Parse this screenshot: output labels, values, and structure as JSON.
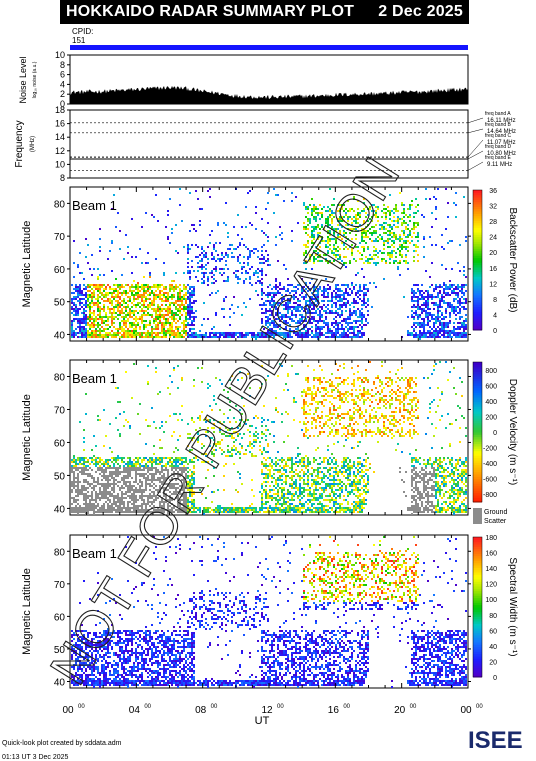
{
  "header": {
    "title": "HOKKAIDO RADAR SUMMARY PLOT",
    "date": "2 Dec 2025"
  },
  "cpid": {
    "label": "CPID:",
    "value": "151"
  },
  "panels": {
    "noise": {
      "ylabel": "Noise Level",
      "ylabel_sub": "log₁₀ noise (a.u.)",
      "ticks": [
        "0",
        "2",
        "4",
        "6",
        "8",
        "10"
      ]
    },
    "freq": {
      "ylabel": "Frequency",
      "ylabel_unit": "(MHz)",
      "ticks": [
        "8",
        "10",
        "12",
        "14",
        "16",
        "18"
      ],
      "bands": [
        {
          "name": "freq band A",
          "value": "16.11 MHz"
        },
        {
          "name": "freq band B",
          "value": "14.64 MHz"
        },
        {
          "name": "freq band C",
          "value": "11.07 MHz"
        },
        {
          "name": "freq band D",
          "value": "10.80 MHz"
        },
        {
          "name": "freq band E",
          "value": "9.11 MHz"
        }
      ]
    },
    "power": {
      "beam": "Beam  1",
      "ylabel": "Magnetic Latitude",
      "cbar_label": "Backscatter Power (dB)",
      "cbar_ticks": [
        "0",
        "4",
        "8",
        "12",
        "16",
        "20",
        "24",
        "28",
        "32",
        "36"
      ]
    },
    "velocity": {
      "beam": "Beam  1",
      "ylabel": "Magnetic Latitude",
      "cbar_label": "Doppler Velocity (m s⁻¹)",
      "cbar_ticks": [
        "800",
        "600",
        "400",
        "200",
        "0",
        "-200",
        "-400",
        "-600",
        "-800"
      ],
      "ground1": "Ground",
      "ground2": "Scatter"
    },
    "width": {
      "beam": "Beam  1",
      "ylabel": "Magnetic Latitude",
      "cbar_label": "Spectral Width (m s⁻¹)",
      "cbar_ticks": [
        "0",
        "20",
        "40",
        "60",
        "80",
        "100",
        "120",
        "140",
        "160",
        "180"
      ]
    }
  },
  "lat_ticks": [
    "40",
    "50",
    "60",
    "70",
    "80"
  ],
  "x_axis": {
    "label": "UT",
    "ticks": [
      "00",
      "04",
      "08",
      "12",
      "16",
      "20",
      "00"
    ],
    "tick_sup": "00"
  },
  "footer": {
    "line1": "Quick-look plot created by sddata.adm",
    "line2": "01:13 UT  3 Dec 2025"
  },
  "logo": "ISEE",
  "watermark": "NOT FOR PUBLICATION",
  "colors": {
    "cpid_bar": "#1414ff",
    "ground_scatter": "#8c8c8c"
  },
  "chart_data": [
    {
      "type": "area",
      "title": "Noise Level",
      "x_unit": "UT hours",
      "x": [
        0,
        1,
        2,
        3,
        4,
        5,
        6,
        7,
        8,
        9,
        10,
        11,
        12,
        13,
        14,
        15,
        16,
        17,
        18,
        19,
        20,
        21,
        22,
        23,
        24
      ],
      "values": [
        2.2,
        2.3,
        2.4,
        2.6,
        2.8,
        3.0,
        3.2,
        3.0,
        2.4,
        2.0,
        1.5,
        1.3,
        1.2,
        1.3,
        1.4,
        1.5,
        1.7,
        1.8,
        1.9,
        2.0,
        2.2,
        2.3,
        2.5,
        2.7,
        2.9
      ],
      "ylim": [
        0,
        10
      ]
    },
    {
      "type": "line",
      "title": "Frequency (MHz)",
      "x_unit": "UT hours",
      "series": [
        {
          "name": "freq band A",
          "values": [
            16.11
          ]
        },
        {
          "name": "freq band B",
          "values": [
            14.64
          ]
        },
        {
          "name": "freq band C",
          "values": [
            11.07
          ]
        },
        {
          "name": "freq band D",
          "values": [
            10.8
          ]
        },
        {
          "name": "freq band E",
          "values": [
            9.11
          ]
        }
      ],
      "ylim": [
        8,
        18
      ]
    },
    {
      "type": "heatmap",
      "title": "Backscatter Power (dB)",
      "xlim": [
        0,
        24
      ],
      "ylim": [
        38,
        85
      ],
      "zlim": [
        0,
        36
      ]
    },
    {
      "type": "heatmap",
      "title": "Doppler Velocity (m s-1)",
      "xlim": [
        0,
        24
      ],
      "ylim": [
        38,
        85
      ],
      "zlim": [
        -800,
        800
      ]
    },
    {
      "type": "heatmap",
      "title": "Spectral Width (m s-1)",
      "xlim": [
        0,
        24
      ],
      "ylim": [
        38,
        85
      ],
      "zlim": [
        0,
        180
      ]
    }
  ]
}
